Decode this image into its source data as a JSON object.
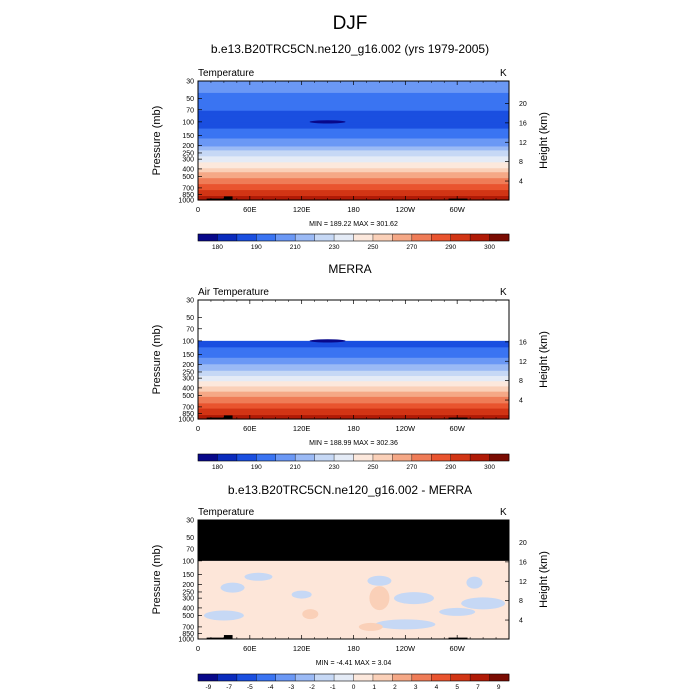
{
  "figure_title": "DJF",
  "palette": [
    "#08088a",
    "#0a2bbd",
    "#1a4fe0",
    "#3a74f2",
    "#6b98f5",
    "#9bbaf5",
    "#c6d8f5",
    "#e4ebf6",
    "#fce8dc",
    "#fad0b8",
    "#f5a886",
    "#ef7c57",
    "#e9542f",
    "#d23515",
    "#b01a06",
    "#7a0c02"
  ],
  "zero_color": "#fde6d9",
  "mask_color": "#000000",
  "colorbar_temperature_labels": [
    "180",
    "190",
    "210",
    "230",
    "250",
    "270",
    "290",
    "300"
  ],
  "colorbar_difference_labels": [
    "-9",
    "-7",
    "-5",
    "-4",
    "-3",
    "-2",
    "-1",
    "0",
    "1",
    "2",
    "3",
    "4",
    "5",
    "7",
    "9"
  ],
  "panels": [
    {
      "id": "model",
      "title": "b.e13.B20TRC5CN.ne120_g16.002 (yrs 1979-2005)",
      "left_label": "Temperature",
      "right_label": "K",
      "minmax": "MIN = 189.22  MAX = 301.62",
      "pressure_ticks": [
        "30",
        "50",
        "70",
        "100",
        "150",
        "200",
        "250",
        "300",
        "400",
        "500",
        "700",
        "850",
        "1000"
      ],
      "height_ticks": [
        "20",
        "16",
        "12",
        "8",
        "4"
      ],
      "lon_ticks": [
        "0",
        "60E",
        "120E",
        "180",
        "120W",
        "60W"
      ],
      "ylabel_left": "Pressure (mb)",
      "ylabel_right": "Height (km)"
    },
    {
      "id": "obs",
      "title": "MERRA",
      "left_label": "Air Temperature",
      "right_label": "K",
      "minmax": "MIN = 188.99  MAX = 302.36",
      "pressure_ticks": [
        "30",
        "50",
        "70",
        "100",
        "150",
        "200",
        "250",
        "300",
        "400",
        "500",
        "700",
        "850",
        "1000"
      ],
      "height_ticks": [
        "16",
        "12",
        "8",
        "4"
      ],
      "lon_ticks": [
        "0",
        "60E",
        "120E",
        "180",
        "120W",
        "60W"
      ],
      "ylabel_left": "Pressure (mb)",
      "ylabel_right": "Height (km)"
    },
    {
      "id": "diff",
      "title": "b.e13.B20TRC5CN.ne120_g16.002 - MERRA",
      "left_label": "Temperature",
      "right_label": "K",
      "minmax": "MIN = -4.41  MAX =  3.04",
      "pressure_ticks": [
        "30",
        "50",
        "70",
        "100",
        "150",
        "200",
        "250",
        "300",
        "400",
        "500",
        "700",
        "850",
        "1000"
      ],
      "height_ticks": [
        "20",
        "16",
        "12",
        "8",
        "4"
      ],
      "lon_ticks": [
        "0",
        "60E",
        "120E",
        "180",
        "120W",
        "60W"
      ],
      "ylabel_left": "Pressure (mb)",
      "ylabel_right": "Height (km)"
    }
  ],
  "chart_data": [
    {
      "type": "heatmap",
      "title": "b.e13.B20TRC5CN.ne120_g16.002 (yrs 1979-2005)",
      "variable": "Temperature",
      "units": "K",
      "x_axis": "longitude",
      "xlim": [
        0,
        360
      ],
      "y_axis": "pressure (mb), log scale",
      "ylim": [
        1000,
        30
      ],
      "levels": [
        180,
        190,
        210,
        230,
        250,
        270,
        290,
        300
      ],
      "zonal_profile": [
        {
          "pressure": 30,
          "value": 212
        },
        {
          "pressure": 50,
          "value": 205
        },
        {
          "pressure": 70,
          "value": 200
        },
        {
          "pressure": 100,
          "value": 196
        },
        {
          "pressure": 150,
          "value": 203
        },
        {
          "pressure": 200,
          "value": 215
        },
        {
          "pressure": 250,
          "value": 226
        },
        {
          "pressure": 300,
          "value": 235
        },
        {
          "pressure": 400,
          "value": 250
        },
        {
          "pressure": 500,
          "value": 262
        },
        {
          "pressure": 700,
          "value": 278
        },
        {
          "pressure": 850,
          "value": 287
        },
        {
          "pressure": 1000,
          "value": 296
        }
      ],
      "min": 189.22,
      "max": 301.62
    },
    {
      "type": "heatmap",
      "title": "MERRA",
      "variable": "Air Temperature",
      "units": "K",
      "x_axis": "longitude",
      "xlim": [
        0,
        360
      ],
      "y_axis": "pressure (mb), log scale",
      "ylim": [
        1000,
        30
      ],
      "data_top_pressure": 100,
      "levels": [
        180,
        190,
        210,
        230,
        250,
        270,
        290,
        300
      ],
      "zonal_profile": [
        {
          "pressure": 100,
          "value": 196
        },
        {
          "pressure": 150,
          "value": 203
        },
        {
          "pressure": 200,
          "value": 215
        },
        {
          "pressure": 250,
          "value": 226
        },
        {
          "pressure": 300,
          "value": 235
        },
        {
          "pressure": 400,
          "value": 250
        },
        {
          "pressure": 500,
          "value": 262
        },
        {
          "pressure": 700,
          "value": 278
        },
        {
          "pressure": 850,
          "value": 287
        },
        {
          "pressure": 1000,
          "value": 296
        }
      ],
      "min": 188.99,
      "max": 302.36
    },
    {
      "type": "heatmap",
      "title": "b.e13.B20TRC5CN.ne120_g16.002 - MERRA",
      "variable": "Temperature",
      "units": "K",
      "x_axis": "longitude",
      "xlim": [
        0,
        360
      ],
      "y_axis": "pressure (mb), log scale",
      "ylim": [
        1000,
        30
      ],
      "masked_above_pressure": 100,
      "levels": [
        -9,
        -7,
        -5,
        -4,
        -3,
        -2,
        -1,
        0,
        1,
        2,
        3,
        4,
        5,
        7,
        9
      ],
      "typical_value": 0.3,
      "min": -4.41,
      "max": 3.04
    }
  ]
}
